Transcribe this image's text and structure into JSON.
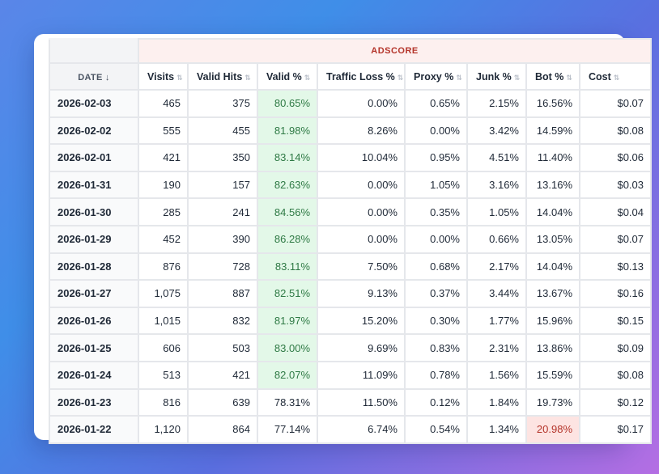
{
  "table": {
    "group_header": "ADSCORE",
    "columns": {
      "date": "DATE ↓",
      "visits": "Visits",
      "valid_hits": "Valid Hits",
      "valid_pct": "Valid %",
      "traffic_loss": "Traffic Loss %",
      "proxy": "Proxy %",
      "junk": "Junk %",
      "bot": "Bot %",
      "cost": "Cost"
    },
    "sort_icon": "⇅",
    "rows": [
      {
        "date": "2026-02-03",
        "visits": "465",
        "valid_hits": "375",
        "valid_pct": "80.65%",
        "traffic_loss": "0.00%",
        "proxy": "0.65%",
        "junk": "2.15%",
        "bot": "16.56%",
        "cost": "$0.07"
      },
      {
        "date": "2026-02-02",
        "visits": "555",
        "valid_hits": "455",
        "valid_pct": "81.98%",
        "traffic_loss": "8.26%",
        "proxy": "0.00%",
        "junk": "3.42%",
        "bot": "14.59%",
        "cost": "$0.08"
      },
      {
        "date": "2026-02-01",
        "visits": "421",
        "valid_hits": "350",
        "valid_pct": "83.14%",
        "traffic_loss": "10.04%",
        "proxy": "0.95%",
        "junk": "4.51%",
        "bot": "11.40%",
        "cost": "$0.06"
      },
      {
        "date": "2026-01-31",
        "visits": "190",
        "valid_hits": "157",
        "valid_pct": "82.63%",
        "traffic_loss": "0.00%",
        "proxy": "1.05%",
        "junk": "3.16%",
        "bot": "13.16%",
        "cost": "$0.03"
      },
      {
        "date": "2026-01-30",
        "visits": "285",
        "valid_hits": "241",
        "valid_pct": "84.56%",
        "traffic_loss": "0.00%",
        "proxy": "0.35%",
        "junk": "1.05%",
        "bot": "14.04%",
        "cost": "$0.04"
      },
      {
        "date": "2026-01-29",
        "visits": "452",
        "valid_hits": "390",
        "valid_pct": "86.28%",
        "traffic_loss": "0.00%",
        "proxy": "0.00%",
        "junk": "0.66%",
        "bot": "13.05%",
        "cost": "$0.07"
      },
      {
        "date": "2026-01-28",
        "visits": "876",
        "valid_hits": "728",
        "valid_pct": "83.11%",
        "traffic_loss": "7.50%",
        "proxy": "0.68%",
        "junk": "2.17%",
        "bot": "14.04%",
        "cost": "$0.13"
      },
      {
        "date": "2026-01-27",
        "visits": "1,075",
        "valid_hits": "887",
        "valid_pct": "82.51%",
        "traffic_loss": "9.13%",
        "proxy": "0.37%",
        "junk": "3.44%",
        "bot": "13.67%",
        "cost": "$0.16"
      },
      {
        "date": "2026-01-26",
        "visits": "1,015",
        "valid_hits": "832",
        "valid_pct": "81.97%",
        "traffic_loss": "15.20%",
        "proxy": "0.30%",
        "junk": "1.77%",
        "bot": "15.96%",
        "cost": "$0.15"
      },
      {
        "date": "2026-01-25",
        "visits": "606",
        "valid_hits": "503",
        "valid_pct": "83.00%",
        "traffic_loss": "9.69%",
        "proxy": "0.83%",
        "junk": "2.31%",
        "bot": "13.86%",
        "cost": "$0.09"
      },
      {
        "date": "2026-01-24",
        "visits": "513",
        "valid_hits": "421",
        "valid_pct": "82.07%",
        "traffic_loss": "11.09%",
        "proxy": "0.78%",
        "junk": "1.56%",
        "bot": "15.59%",
        "cost": "$0.08"
      },
      {
        "date": "2026-01-23",
        "visits": "816",
        "valid_hits": "639",
        "valid_pct": "78.31%",
        "traffic_loss": "11.50%",
        "proxy": "0.12%",
        "junk": "1.84%",
        "bot": "19.73%",
        "cost": "$0.12"
      },
      {
        "date": "2026-01-22",
        "visits": "1,120",
        "valid_hits": "864",
        "valid_pct": "77.14%",
        "traffic_loss": "6.74%",
        "proxy": "0.54%",
        "junk": "1.34%",
        "bot": "20.98%",
        "cost": "$0.17"
      }
    ],
    "highlight_colors": {
      "valid_good_bg": "#e3f8e8",
      "valid_good_text": "#2f7a45",
      "bot_high_bg": "#fde4e2",
      "bot_high_text": "#b4342a",
      "group_header_bg": "#fdf0ef",
      "group_header_text": "#b4342a"
    }
  }
}
